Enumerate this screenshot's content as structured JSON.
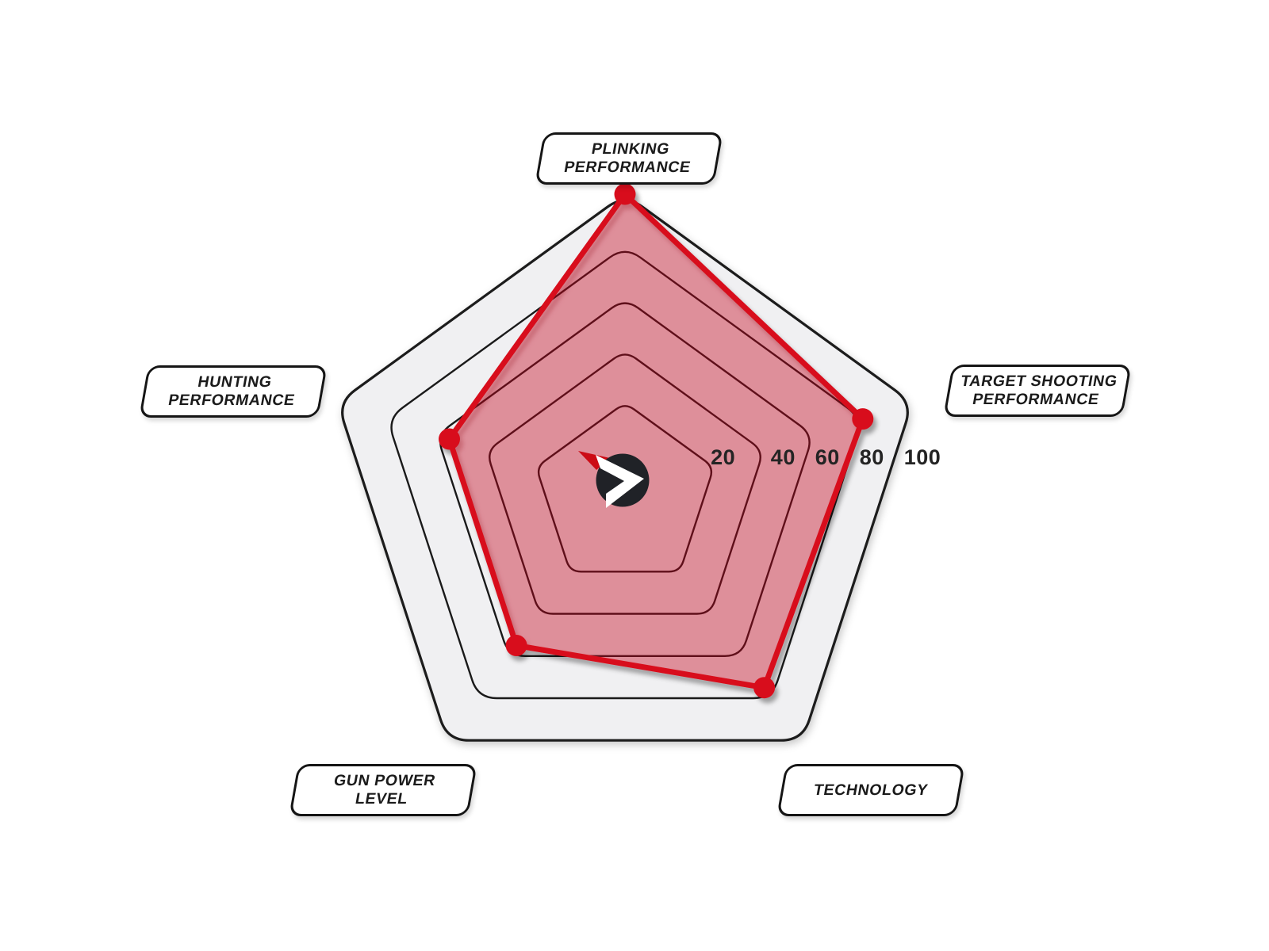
{
  "chart_data": {
    "type": "radar",
    "shape": "pentagon",
    "grid": "pentagon-rings",
    "legend_position": "none",
    "scale": {
      "min": 0,
      "max": 100,
      "ticks": [
        20,
        40,
        60,
        80,
        100
      ]
    },
    "axes": [
      {
        "id": "plinking",
        "label": "PLINKING\nPERFORMANCE",
        "value": 100
      },
      {
        "id": "target_shooting",
        "label": "TARGET SHOOTING\nPERFORMANCE",
        "value": 80
      },
      {
        "id": "technology",
        "label": "TECHNOLOGY",
        "value": 75
      },
      {
        "id": "gun_power",
        "label": "GUN POWER\nLEVEL",
        "value": 55
      },
      {
        "id": "hunting",
        "label": "HUNTING\nPERFORMANCE",
        "value": 55
      }
    ],
    "colors": {
      "series": "#d8101c",
      "series_fill_opacity": 0.33,
      "grid_line": "#1a1a1a",
      "outer_ring_fill": "#f0f0f2",
      "tick_text": "#242424",
      "background": "#ffffff"
    }
  },
  "logo": {
    "description": "black circle with white chevron and red wedge pointer",
    "colors": {
      "circle": "#202227",
      "chevron": "#ffffff",
      "wedge": "#cc0b15"
    }
  }
}
